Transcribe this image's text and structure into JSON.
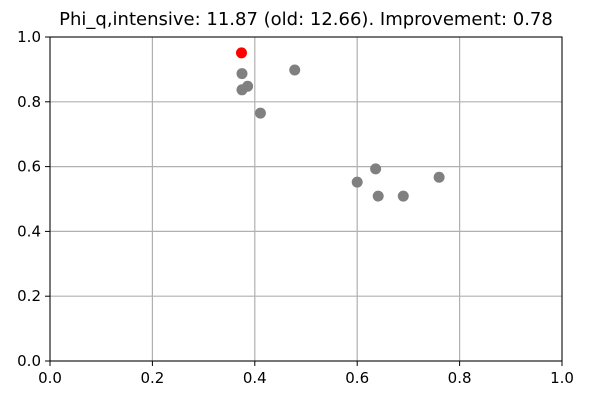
{
  "chart_data": {
    "type": "scatter",
    "title": "Phi_q,intensive: 11.87 (old: 12.66). Improvement: 0.78",
    "xlabel": "",
    "ylabel": "",
    "xlim": [
      0.0,
      1.0
    ],
    "ylim": [
      0.0,
      1.0
    ],
    "xticks": [
      "0.0",
      "0.2",
      "0.4",
      "0.6",
      "0.8",
      "1.0"
    ],
    "yticks": [
      "0.0",
      "0.2",
      "0.4",
      "0.6",
      "0.8",
      "1.0"
    ],
    "grid": true,
    "legend": "none",
    "series": [
      {
        "color": "#808080",
        "points": [
          {
            "x": 0.375,
            "y": 0.887
          },
          {
            "x": 0.375,
            "y": 0.837
          },
          {
            "x": 0.386,
            "y": 0.848
          },
          {
            "x": 0.411,
            "y": 0.765
          },
          {
            "x": 0.478,
            "y": 0.898
          },
          {
            "x": 0.6,
            "y": 0.552
          },
          {
            "x": 0.636,
            "y": 0.593
          },
          {
            "x": 0.641,
            "y": 0.509
          },
          {
            "x": 0.69,
            "y": 0.509
          },
          {
            "x": 0.76,
            "y": 0.567
          }
        ]
      },
      {
        "color": "#ff0000",
        "points": [
          {
            "x": 0.374,
            "y": 0.951
          }
        ]
      }
    ]
  }
}
